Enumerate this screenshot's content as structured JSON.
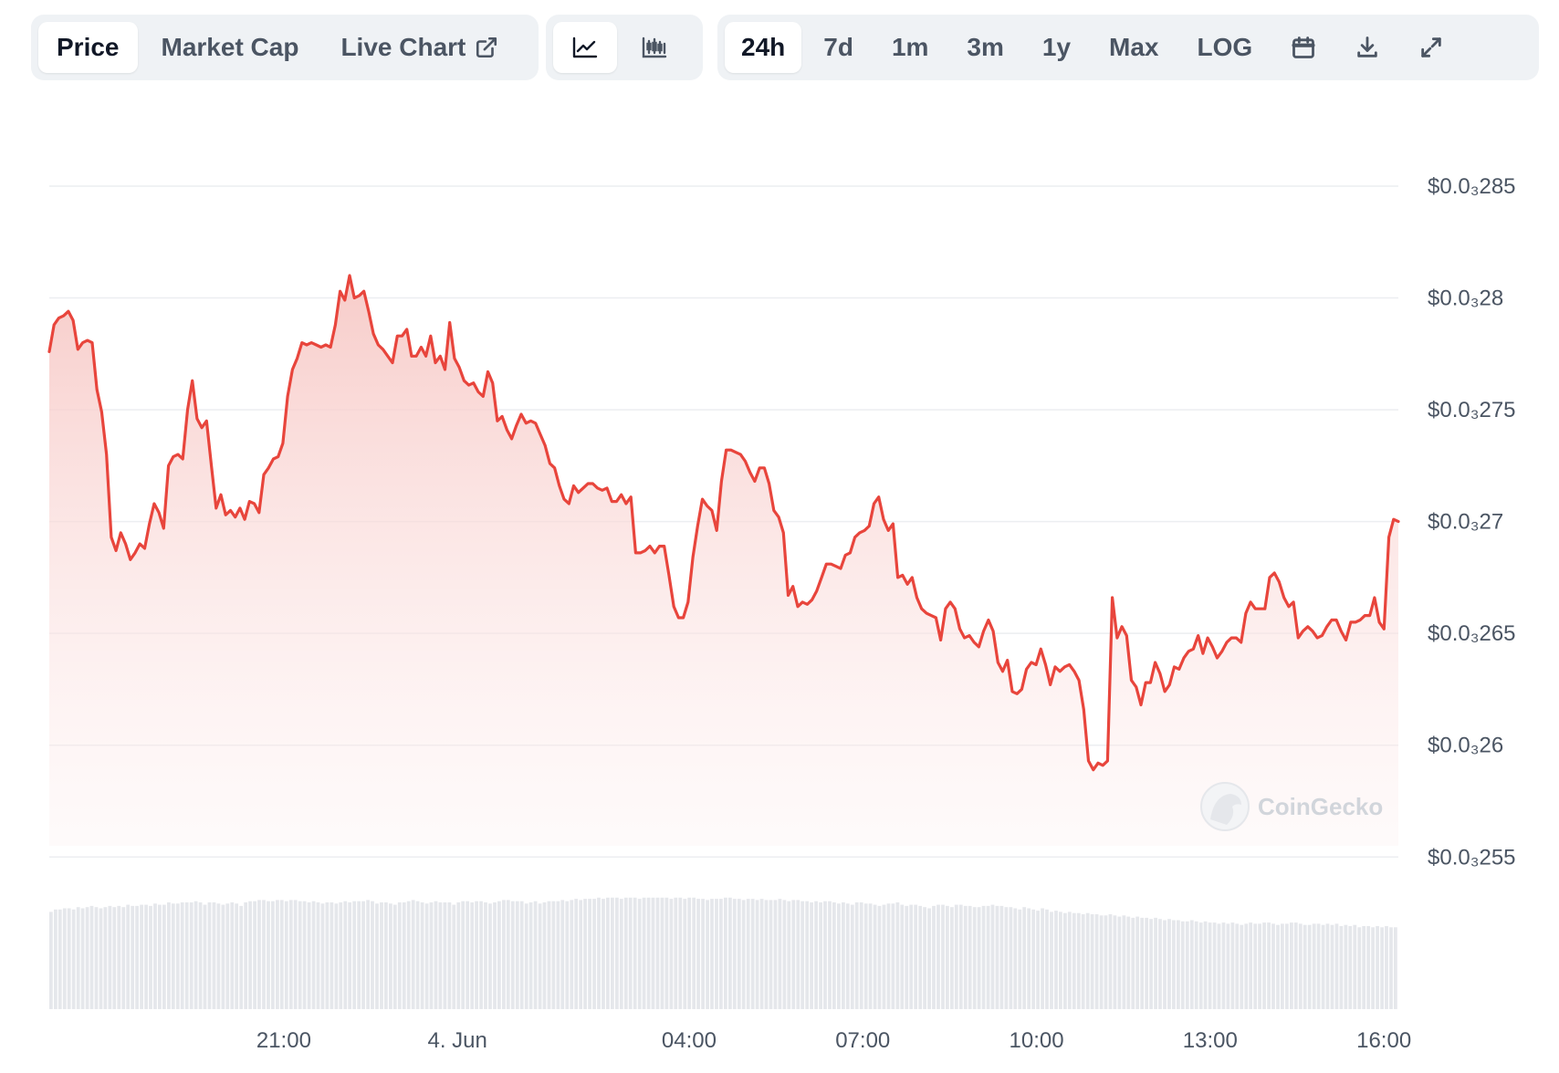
{
  "toolbar": {
    "tabs": [
      {
        "label": "Price",
        "active": true
      },
      {
        "label": "Market Cap",
        "active": false
      },
      {
        "label": "Live Chart",
        "active": false
      }
    ],
    "chart_types": [
      {
        "icon": "line-chart-icon",
        "active": true
      },
      {
        "icon": "candlestick-chart-icon",
        "active": false
      }
    ],
    "ranges": [
      {
        "label": "24h",
        "active": true
      },
      {
        "label": "7d",
        "active": false
      },
      {
        "label": "1m",
        "active": false
      },
      {
        "label": "3m",
        "active": false
      },
      {
        "label": "1y",
        "active": false
      },
      {
        "label": "Max",
        "active": false
      },
      {
        "label": "LOG",
        "active": false
      }
    ],
    "action_icons": [
      "calendar-icon",
      "download-icon",
      "fullscreen-icon"
    ]
  },
  "watermark": "CoinGecko",
  "colors": {
    "line": "#e8453c",
    "area_top": "#f7c9c6",
    "grid": "#eceef1",
    "volume": "#e5e7eb",
    "active_bg": "#ffffff",
    "toolbar_bg": "#eff2f5"
  },
  "chart_data": {
    "type": "area",
    "title": "",
    "xlabel": "",
    "ylabel": "",
    "ylim": [
      2.555e-05,
      2.85e-05
    ],
    "y_ticks": [
      {
        "value": 2.85e-05,
        "label": "$0.0₃285"
      },
      {
        "value": 2.8e-05,
        "label": "$0.0₃28"
      },
      {
        "value": 2.75e-05,
        "label": "$0.0₃275"
      },
      {
        "value": 2.7e-05,
        "label": "$0.0₃27"
      },
      {
        "value": 2.65e-05,
        "label": "$0.0₃265"
      },
      {
        "value": 2.6e-05,
        "label": "$0.0₃26"
      },
      {
        "value": 2.55e-05,
        "label": "$0.0₃255"
      }
    ],
    "x_ticks": [
      {
        "hour": 21,
        "label": "21:00"
      },
      {
        "hour": 24,
        "label": "4. Jun"
      },
      {
        "hour": 28,
        "label": "04:00"
      },
      {
        "hour": 31,
        "label": "07:00"
      },
      {
        "hour": 34,
        "label": "10:00"
      },
      {
        "hour": 37,
        "label": "13:00"
      },
      {
        "hour": 40,
        "label": "16:00"
      }
    ],
    "xlim_hours": [
      16.95,
      40.25
    ],
    "series": [
      {
        "values": [
          2.776e-05,
          2.788e-05,
          2.791e-05,
          2.792e-05,
          2.794e-05,
          2.79e-05,
          2.777e-05,
          2.78e-05,
          2.781e-05,
          2.78e-05,
          2.759e-05,
          2.749e-05,
          2.73e-05,
          2.693e-05,
          2.687e-05,
          2.695e-05,
          2.69e-05,
          2.683e-05,
          2.686e-05,
          2.69e-05,
          2.688e-05,
          2.699e-05,
          2.708e-05,
          2.704e-05,
          2.697e-05,
          2.725e-05,
          2.729e-05,
          2.73e-05,
          2.728e-05,
          2.75e-05,
          2.763e-05,
          2.746e-05,
          2.742e-05,
          2.745e-05,
          2.725e-05,
          2.706e-05,
          2.712e-05,
          2.703e-05,
          2.705e-05,
          2.702e-05,
          2.706e-05,
          2.701e-05,
          2.709e-05,
          2.708e-05,
          2.704e-05,
          2.721e-05,
          2.724e-05,
          2.728e-05,
          2.729e-05,
          2.735e-05,
          2.756e-05,
          2.768e-05,
          2.773e-05,
          2.78e-05,
          2.779e-05,
          2.78e-05,
          2.779e-05,
          2.778e-05,
          2.779e-05,
          2.778e-05,
          2.788e-05,
          2.803e-05,
          2.799e-05,
          2.81e-05,
          2.8e-05,
          2.801e-05,
          2.803e-05,
          2.794e-05,
          2.784e-05,
          2.779e-05,
          2.777e-05,
          2.774e-05,
          2.771e-05,
          2.783e-05,
          2.783e-05,
          2.786e-05,
          2.774e-05,
          2.774e-05,
          2.778e-05,
          2.774e-05,
          2.783e-05,
          2.771e-05,
          2.774e-05,
          2.768e-05,
          2.789e-05,
          2.773e-05,
          2.769e-05,
          2.763e-05,
          2.761e-05,
          2.762e-05,
          2.758e-05,
          2.756e-05,
          2.767e-05,
          2.762e-05,
          2.745e-05,
          2.747e-05,
          2.741e-05,
          2.737e-05,
          2.743e-05,
          2.748e-05,
          2.744e-05,
          2.745e-05,
          2.744e-05,
          2.739e-05,
          2.734e-05,
          2.726e-05,
          2.724e-05,
          2.716e-05,
          2.71e-05,
          2.708e-05,
          2.716e-05,
          2.713e-05,
          2.715e-05,
          2.717e-05,
          2.717e-05,
          2.715e-05,
          2.714e-05,
          2.715e-05,
          2.709e-05,
          2.709e-05,
          2.712e-05,
          2.708e-05,
          2.711e-05,
          2.686e-05,
          2.686e-05,
          2.687e-05,
          2.689e-05,
          2.686e-05,
          2.689e-05,
          2.689e-05,
          2.676e-05,
          2.662e-05,
          2.657e-05,
          2.657e-05,
          2.664e-05,
          2.684e-05,
          2.698e-05,
          2.71e-05,
          2.707e-05,
          2.705e-05,
          2.696e-05,
          2.718e-05,
          2.732e-05,
          2.732e-05,
          2.731e-05,
          2.73e-05,
          2.727e-05,
          2.722e-05,
          2.718e-05,
          2.724e-05,
          2.724e-05,
          2.717e-05,
          2.705e-05,
          2.702e-05,
          2.695e-05,
          2.667e-05,
          2.671e-05,
          2.662e-05,
          2.664e-05,
          2.663e-05,
          2.665e-05,
          2.669e-05,
          2.675e-05,
          2.681e-05,
          2.681e-05,
          2.68e-05,
          2.679e-05,
          2.685e-05,
          2.686e-05,
          2.693e-05,
          2.695e-05,
          2.696e-05,
          2.698e-05,
          2.708e-05,
          2.711e-05,
          2.701e-05,
          2.696e-05,
          2.699e-05,
          2.675e-05,
          2.676e-05,
          2.672e-05,
          2.675e-05,
          2.666e-05,
          2.661e-05,
          2.659e-05,
          2.658e-05,
          2.657e-05,
          2.647e-05,
          2.661e-05,
          2.664e-05,
          2.661e-05,
          2.652e-05,
          2.648e-05,
          2.649e-05,
          2.646e-05,
          2.644e-05,
          2.651e-05,
          2.656e-05,
          2.651e-05,
          2.637e-05,
          2.633e-05,
          2.638e-05,
          2.624e-05,
          2.623e-05,
          2.625e-05,
          2.634e-05,
          2.637e-05,
          2.636e-05,
          2.643e-05,
          2.636e-05,
          2.627e-05,
          2.635e-05,
          2.633e-05,
          2.635e-05,
          2.636e-05,
          2.633e-05,
          2.629e-05,
          2.616e-05,
          2.593e-05,
          2.589e-05,
          2.592e-05,
          2.591e-05,
          2.593e-05,
          2.666e-05,
          2.648e-05,
          2.653e-05,
          2.649e-05,
          2.629e-05,
          2.626e-05,
          2.618e-05,
          2.628e-05,
          2.628e-05,
          2.637e-05,
          2.632e-05,
          2.624e-05,
          2.627e-05,
          2.635e-05,
          2.634e-05,
          2.639e-05,
          2.642e-05,
          2.643e-05,
          2.649e-05,
          2.641e-05,
          2.648e-05,
          2.644e-05,
          2.639e-05,
          2.642e-05,
          2.646e-05,
          2.648e-05,
          2.648e-05,
          2.646e-05,
          2.659e-05,
          2.664e-05,
          2.661e-05,
          2.661e-05,
          2.661e-05,
          2.675e-05,
          2.677e-05,
          2.673e-05,
          2.666e-05,
          2.662e-05,
          2.664e-05,
          2.648e-05,
          2.651e-05,
          2.653e-05,
          2.651e-05,
          2.648e-05,
          2.649e-05,
          2.653e-05,
          2.656e-05,
          2.656e-05,
          2.651e-05,
          2.647e-05,
          2.655e-05,
          2.655e-05,
          2.656e-05,
          2.658e-05,
          2.658e-05,
          2.666e-05,
          2.655e-05,
          2.652e-05,
          2.693e-05,
          2.701e-05,
          2.7e-05
        ]
      }
    ],
    "volume": [
      0.82,
      0.84,
      0.84,
      0.85,
      0.85,
      0.84,
      0.86,
      0.85,
      0.86,
      0.87,
      0.86,
      0.85,
      0.86,
      0.87,
      0.86,
      0.87,
      0.86,
      0.88,
      0.87,
      0.87,
      0.88,
      0.88,
      0.87,
      0.89,
      0.88,
      0.88,
      0.9,
      0.89,
      0.89,
      0.9,
      0.9,
      0.9,
      0.91,
      0.9,
      0.88,
      0.9,
      0.9,
      0.89,
      0.88,
      0.89,
      0.9,
      0.89,
      0.87,
      0.9,
      0.91,
      0.91,
      0.92,
      0.92,
      0.91,
      0.91,
      0.92,
      0.92,
      0.91,
      0.92,
      0.92,
      0.91,
      0.91,
      0.9,
      0.91,
      0.9,
      0.89,
      0.9,
      0.9,
      0.89,
      0.9,
      0.91,
      0.9,
      0.91,
      0.91,
      0.91,
      0.92,
      0.91,
      0.89,
      0.9,
      0.9,
      0.89,
      0.88,
      0.9,
      0.9,
      0.91,
      0.92,
      0.91,
      0.9,
      0.89,
      0.9,
      0.91,
      0.9,
      0.9,
      0.9,
      0.88,
      0.9,
      0.91,
      0.91,
      0.9,
      0.91,
      0.91,
      0.9,
      0.89,
      0.9,
      0.91,
      0.92,
      0.92,
      0.91,
      0.91,
      0.91,
      0.89,
      0.9,
      0.91,
      0.89,
      0.9,
      0.91,
      0.91,
      0.91,
      0.92,
      0.91,
      0.92,
      0.93,
      0.92,
      0.93,
      0.93,
      0.93,
      0.94,
      0.93,
      0.94,
      0.94,
      0.94,
      0.93,
      0.94,
      0.94,
      0.94,
      0.93,
      0.94,
      0.94,
      0.94,
      0.94,
      0.94,
      0.94,
      0.93,
      0.94,
      0.94,
      0.93,
      0.94,
      0.94,
      0.93,
      0.93,
      0.92,
      0.93,
      0.93,
      0.93,
      0.94,
      0.94,
      0.93,
      0.93,
      0.92,
      0.93,
      0.93,
      0.92,
      0.93,
      0.92,
      0.92,
      0.92,
      0.93,
      0.92,
      0.91,
      0.92,
      0.92,
      0.91,
      0.91,
      0.9,
      0.91,
      0.9,
      0.91,
      0.91,
      0.9,
      0.89,
      0.9,
      0.89,
      0.88,
      0.9,
      0.9,
      0.89,
      0.89,
      0.88,
      0.87,
      0.88,
      0.89,
      0.89,
      0.9,
      0.88,
      0.87,
      0.88,
      0.88,
      0.87,
      0.86,
      0.85,
      0.87,
      0.88,
      0.88,
      0.87,
      0.86,
      0.88,
      0.88,
      0.87,
      0.87,
      0.86,
      0.86,
      0.87,
      0.87,
      0.88,
      0.87,
      0.87,
      0.86,
      0.86,
      0.85,
      0.84,
      0.86,
      0.85,
      0.84,
      0.83,
      0.85,
      0.84,
      0.82,
      0.83,
      0.82,
      0.81,
      0.82,
      0.81,
      0.81,
      0.8,
      0.81,
      0.8,
      0.8,
      0.79,
      0.79,
      0.8,
      0.79,
      0.78,
      0.79,
      0.78,
      0.77,
      0.78,
      0.77,
      0.77,
      0.76,
      0.77,
      0.76,
      0.75,
      0.76,
      0.75,
      0.75,
      0.74,
      0.74,
      0.75,
      0.74,
      0.73,
      0.74,
      0.73,
      0.73,
      0.72,
      0.73,
      0.72,
      0.73,
      0.72,
      0.71,
      0.72,
      0.73,
      0.72,
      0.72,
      0.73,
      0.73,
      0.72,
      0.71,
      0.72,
      0.72,
      0.73,
      0.73,
      0.72,
      0.71,
      0.71,
      0.72,
      0.72,
      0.71,
      0.72,
      0.71,
      0.72,
      0.7,
      0.71,
      0.7,
      0.71,
      0.69,
      0.7,
      0.7,
      0.69,
      0.7,
      0.69,
      0.7,
      0.69,
      0.69
    ]
  }
}
